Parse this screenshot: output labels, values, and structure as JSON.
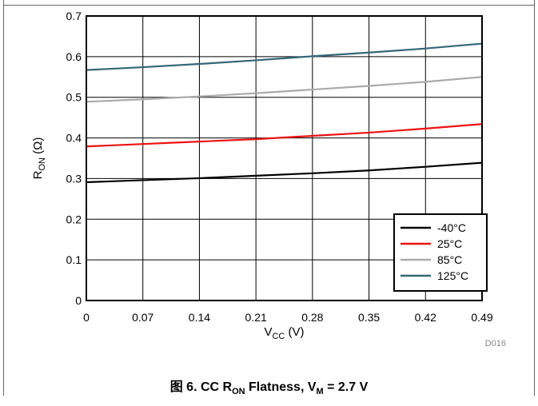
{
  "chart_data": {
    "type": "line",
    "x": [
      0,
      0.07,
      0.14,
      0.21,
      0.28,
      0.35,
      0.42,
      0.49
    ],
    "xticks": [
      "0",
      "0.07",
      "0.14",
      "0.21",
      "0.28",
      "0.35",
      "0.42",
      "0.49"
    ],
    "yticks": [
      "0",
      "0.1",
      "0.2",
      "0.3",
      "0.4",
      "0.5",
      "0.6",
      "0.7"
    ],
    "xlim": [
      0,
      0.49
    ],
    "ylim": [
      0,
      0.7
    ],
    "xlabel": {
      "main": "V",
      "sub": "CC",
      "unit": " (V)"
    },
    "ylabel": {
      "main": "R",
      "sub": "ON",
      "unit": " (Ω)"
    },
    "grid": true,
    "legend_position": "bottom-right",
    "series": [
      {
        "name": "-40°C",
        "color": "#000000",
        "values": [
          0.291,
          0.296,
          0.301,
          0.307,
          0.313,
          0.32,
          0.329,
          0.339
        ]
      },
      {
        "name": "25°C",
        "color": "#ee1111",
        "values": [
          0.379,
          0.385,
          0.391,
          0.397,
          0.405,
          0.413,
          0.423,
          0.434
        ]
      },
      {
        "name": "85°C",
        "color": "#aaaaaa",
        "values": [
          0.489,
          0.495,
          0.502,
          0.51,
          0.519,
          0.528,
          0.538,
          0.55
        ]
      },
      {
        "name": "125°C",
        "color": "#336677",
        "values": [
          0.567,
          0.574,
          0.582,
          0.591,
          0.601,
          0.61,
          0.62,
          0.632
        ]
      }
    ],
    "code": "D016"
  },
  "caption": {
    "prefix": "图 6. CC R",
    "sub1": "ON",
    "middle": " Flatness, V",
    "sub2": "M",
    "suffix": " = 2.7 V"
  }
}
